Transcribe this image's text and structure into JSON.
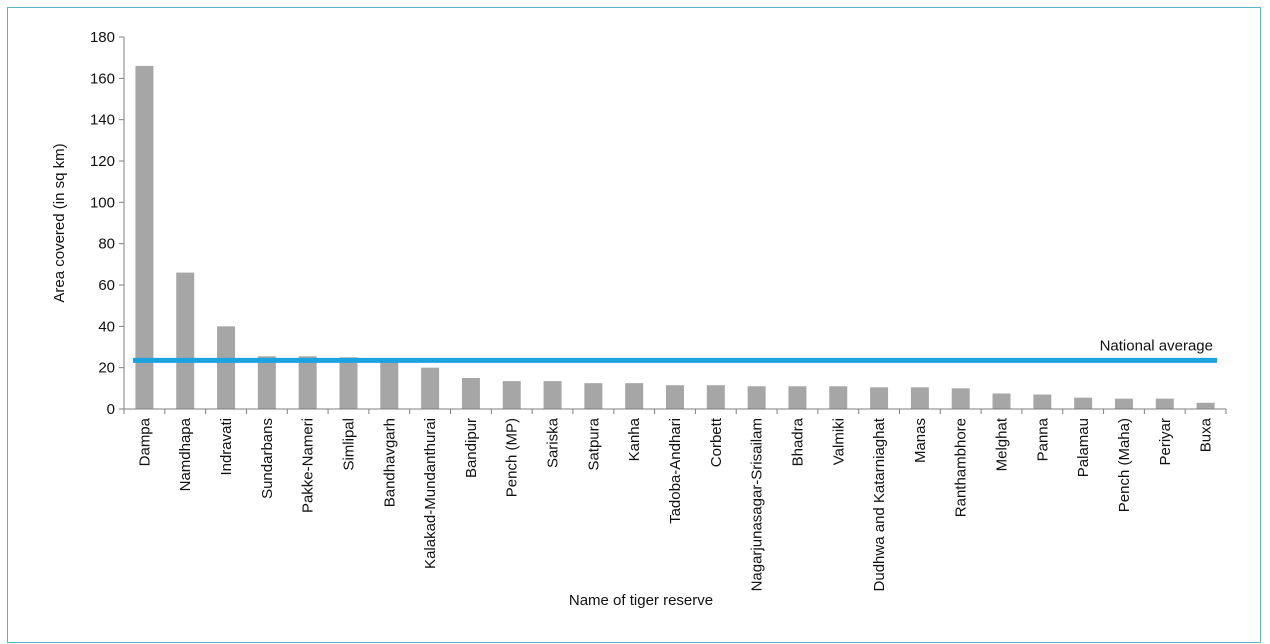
{
  "chart_data": {
    "type": "bar",
    "xlabel": "Name of tiger reserve",
    "ylabel": "Area covered (in sq km)",
    "ylim": [
      0,
      180
    ],
    "yticks": [
      0,
      20,
      40,
      60,
      80,
      100,
      120,
      140,
      160,
      180
    ],
    "grid": false,
    "categories": [
      "Dampa",
      "Namdhapa",
      "Indravati",
      "Sundarbans",
      "Pakke-Nameri",
      "Simlipal",
      "Bandhavgarh",
      "Kalakad-Mundanthurai",
      "Bandipur",
      "Pench (MP)",
      "Sariska",
      "Satpura",
      "Kanha",
      "Tadoba-Andhari",
      "Corbett",
      "Nagarjunasagar-Srisailam",
      "Bhadra",
      "Valmiki",
      "Dudhwa and Katarniaghat",
      "Manas",
      "Ranthambhore",
      "Melghat",
      "Panna",
      "Palamau",
      "Pench (Maha)",
      "Periyar",
      "Buxa"
    ],
    "values": [
      166,
      66,
      40,
      25.5,
      25.5,
      25,
      23,
      20,
      15,
      13.5,
      13.5,
      12.5,
      12.5,
      11.5,
      11.5,
      11,
      11,
      11,
      10.5,
      10.5,
      10,
      7.5,
      7,
      5.5,
      5,
      5,
      3
    ],
    "bar_color": "#a6a6a6",
    "reference_line": {
      "label": "National average",
      "value": 23.5,
      "color": "#1ba3e0"
    }
  }
}
